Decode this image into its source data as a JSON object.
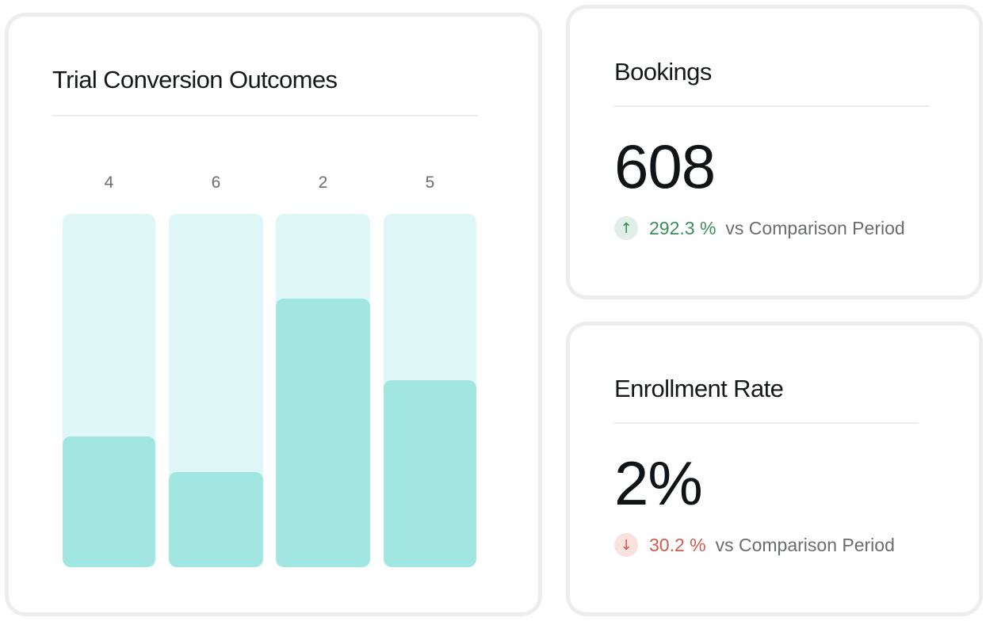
{
  "chart_data": {
    "type": "bar",
    "title": "Trial Conversion Outcomes",
    "categories": [
      "4",
      "6",
      "2",
      "5"
    ],
    "values": [
      0.37,
      0.27,
      0.76,
      0.53
    ],
    "ylim": [
      0,
      1
    ]
  },
  "kpis": {
    "bookings": {
      "title": "Bookings",
      "value": "608",
      "change_pct": "292.3 %",
      "direction": "up",
      "comparison": "vs Comparison Period"
    },
    "enrollment": {
      "title": "Enrollment Rate",
      "value": "2%",
      "change_pct": "30.2 %",
      "direction": "down",
      "comparison": "vs Comparison Period"
    }
  },
  "colors": {
    "track": "#dff7f7",
    "fill": "#a1e6e1",
    "positive": "#3a8f57",
    "negative": "#cf5a4d"
  }
}
